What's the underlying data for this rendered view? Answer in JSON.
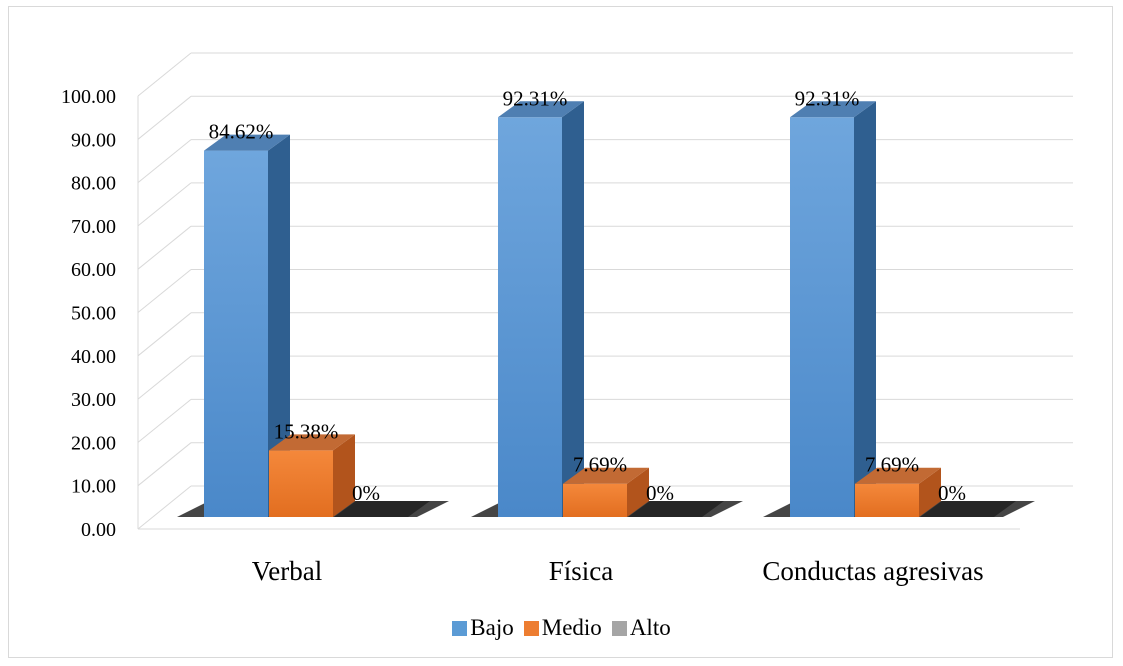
{
  "chart_data": {
    "type": "bar",
    "title": "",
    "xlabel": "",
    "ylabel": "",
    "ylim": [
      0,
      100
    ],
    "yticks": [
      "0.00",
      "10.00",
      "20.00",
      "30.00",
      "40.00",
      "50.00",
      "60.00",
      "70.00",
      "80.00",
      "90.00",
      "100.00"
    ],
    "categories": [
      "Verbal",
      "Física",
      "Conductas agresivas"
    ],
    "series": [
      {
        "name": "Bajo",
        "values": [
          84.62,
          92.31,
          92.31
        ],
        "labels": [
          "84.62%",
          "92.31%",
          "92.31%"
        ],
        "color": "#5b9bd5"
      },
      {
        "name": "Medio",
        "values": [
          15.38,
          7.69,
          7.69
        ],
        "labels": [
          "15.38%",
          "7.69%",
          "7.69%"
        ],
        "color": "#ed7d31"
      },
      {
        "name": "Alto",
        "values": [
          0,
          0,
          0
        ],
        "labels": [
          "0%",
          "0%",
          "0%"
        ],
        "color": "#a5a5a5"
      }
    ],
    "grid": true,
    "legend_position": "bottom",
    "style": "3d-clustered-column"
  }
}
